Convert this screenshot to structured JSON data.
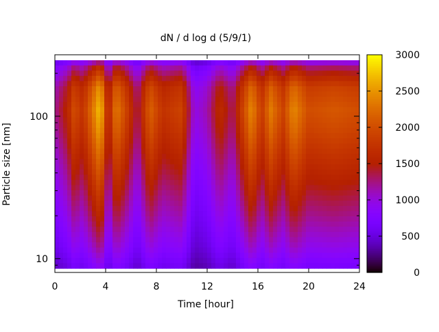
{
  "chart_data": {
    "type": "heatmap",
    "title": "dN / d log d (5/9/1)",
    "xlabel": "Time [hour]",
    "ylabel": "Particle size [nm]",
    "xlim": [
      0,
      24
    ],
    "ylim": [
      8,
      270
    ],
    "y_scale": "log",
    "x_ticks": [
      0,
      4,
      8,
      12,
      16,
      20,
      24
    ],
    "y_ticks": [
      10,
      100
    ],
    "colorbar": {
      "min": 0,
      "max": 3000,
      "ticks": [
        0,
        500,
        1000,
        1500,
        2000,
        2500,
        3000
      ],
      "palette": "black-purple-red-orange-yellow"
    },
    "grid": false,
    "size_profile": [
      {
        "d_nm": 9,
        "dndlogd": 600
      },
      {
        "d_nm": 12,
        "dndlogd": 800
      },
      {
        "d_nm": 20,
        "dndlogd": 1050
      },
      {
        "d_nm": 40,
        "dndlogd": 1350
      },
      {
        "d_nm": 80,
        "dndlogd": 1650
      },
      {
        "d_nm": 110,
        "dndlogd": 1750
      },
      {
        "d_nm": 160,
        "dndlogd": 1600
      },
      {
        "d_nm": 220,
        "dndlogd": 1100
      },
      {
        "d_nm": 270,
        "dndlogd": 400
      }
    ],
    "time_modulation": [
      {
        "hour": 0.0,
        "factor": 0.7
      },
      {
        "hour": 1.0,
        "factor": 0.9
      },
      {
        "hour": 1.5,
        "factor": 1.15
      },
      {
        "hour": 2.2,
        "factor": 1.0
      },
      {
        "hour": 3.6,
        "factor": 1.6
      },
      {
        "hour": 4.2,
        "factor": 0.85
      },
      {
        "hour": 4.8,
        "factor": 1.35
      },
      {
        "hour": 5.5,
        "factor": 1.15
      },
      {
        "hour": 6.5,
        "factor": 0.75
      },
      {
        "hour": 7.5,
        "factor": 1.25
      },
      {
        "hour": 8.5,
        "factor": 1.0
      },
      {
        "hour": 10.0,
        "factor": 1.1
      },
      {
        "hour": 11.0,
        "factor": 0.55
      },
      {
        "hour": 12.0,
        "factor": 0.65
      },
      {
        "hour": 13.0,
        "factor": 0.95
      },
      {
        "hour": 14.0,
        "factor": 0.75
      },
      {
        "hour": 15.5,
        "factor": 1.4
      },
      {
        "hour": 16.3,
        "factor": 1.05
      },
      {
        "hour": 17.0,
        "factor": 1.35
      },
      {
        "hour": 18.0,
        "factor": 1.1
      },
      {
        "hour": 18.8,
        "factor": 1.4
      },
      {
        "hour": 20.0,
        "factor": 1.15
      },
      {
        "hour": 22.0,
        "factor": 1.2
      },
      {
        "hour": 24.0,
        "factor": 1.15
      }
    ]
  }
}
